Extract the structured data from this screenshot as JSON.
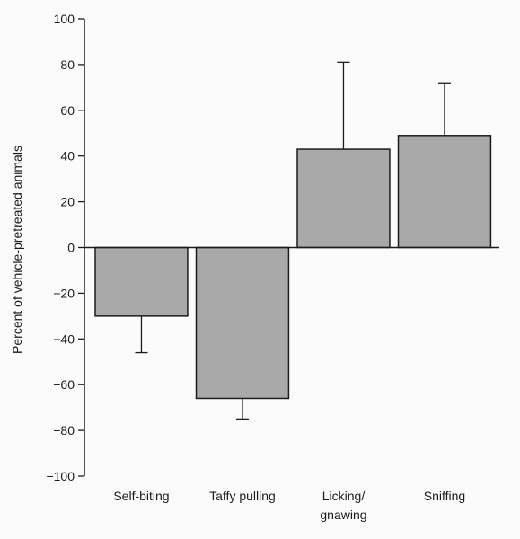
{
  "chart_data": {
    "type": "bar",
    "categories": [
      "Self-biting",
      "Taffy pulling",
      "Licking/\ngnawing",
      "Sniffing"
    ],
    "values": [
      -30,
      -66,
      43,
      49
    ],
    "error_bars": [
      {
        "direction": "down",
        "value": 16
      },
      {
        "direction": "down",
        "value": 9
      },
      {
        "direction": "up",
        "value": 38
      },
      {
        "direction": "up",
        "value": 23
      }
    ],
    "title": "",
    "xlabel": "",
    "ylabel": "Percent of vehicle-pretreated animals",
    "ylim": [
      -100,
      100
    ],
    "yticks": [
      100,
      80,
      60,
      40,
      20,
      0,
      -20,
      -40,
      -60,
      -80,
      -100
    ],
    "grid": false,
    "legend": "none",
    "colors": {
      "bar_fill": "#a9a9a9",
      "bar_stroke": "#1c1c1c",
      "axis": "#1c1c1c",
      "background": "#fbfbfb"
    }
  }
}
